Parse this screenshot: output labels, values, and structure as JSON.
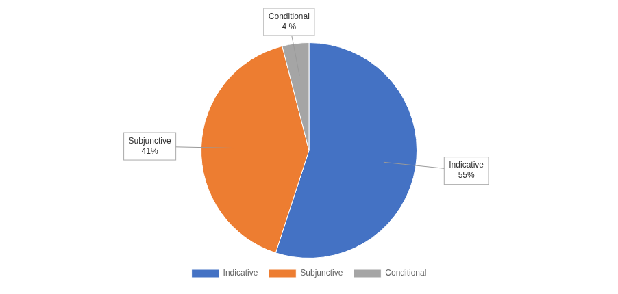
{
  "chart_data": {
    "type": "pie",
    "categories": [
      "Indicative",
      "Subjunctive",
      "Conditional"
    ],
    "values": [
      55,
      41,
      4
    ],
    "colors": [
      "#4472C4",
      "#ED7D31",
      "#A5A5A5"
    ],
    "value_labels": [
      "55%",
      "41%",
      "4 %"
    ],
    "data_labels": true,
    "legend": "bottom"
  }
}
